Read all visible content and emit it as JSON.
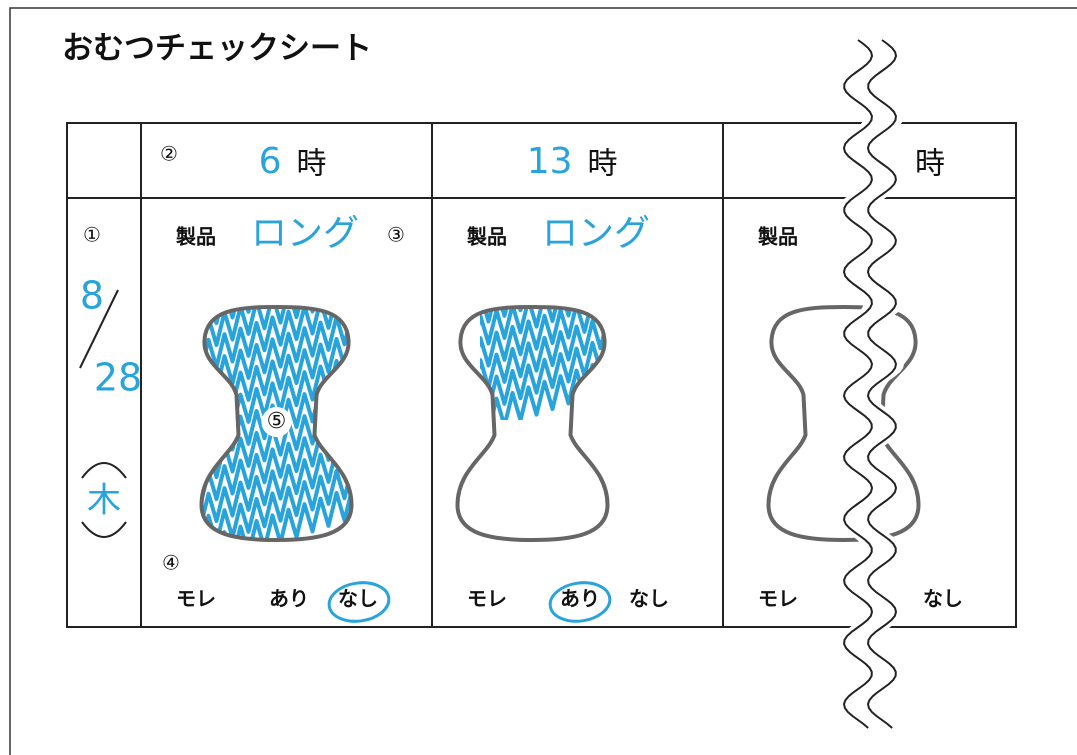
{
  "title": "おむつチェックシート",
  "date": {
    "marker": "①",
    "month": "8",
    "day": "28",
    "weekday": "木"
  },
  "columns": [
    {
      "hour_marker": "②",
      "hour": "6",
      "hour_unit": "時",
      "product_label": "製品",
      "product": "ロング",
      "product_marker": "③",
      "diaper_marker": "⑤",
      "leak_marker": "④",
      "leak_label": "モレ",
      "leak_yes": "あり",
      "leak_no": "なし"
    },
    {
      "hour": "13",
      "hour_unit": "時",
      "product_label": "製品",
      "product": "ロング",
      "leak_label": "モレ",
      "leak_yes": "あり",
      "leak_no": "なし"
    },
    {
      "hour_unit": "時",
      "product_label": "製品",
      "leak_label": "モレ",
      "leak_no": "なし"
    }
  ]
}
